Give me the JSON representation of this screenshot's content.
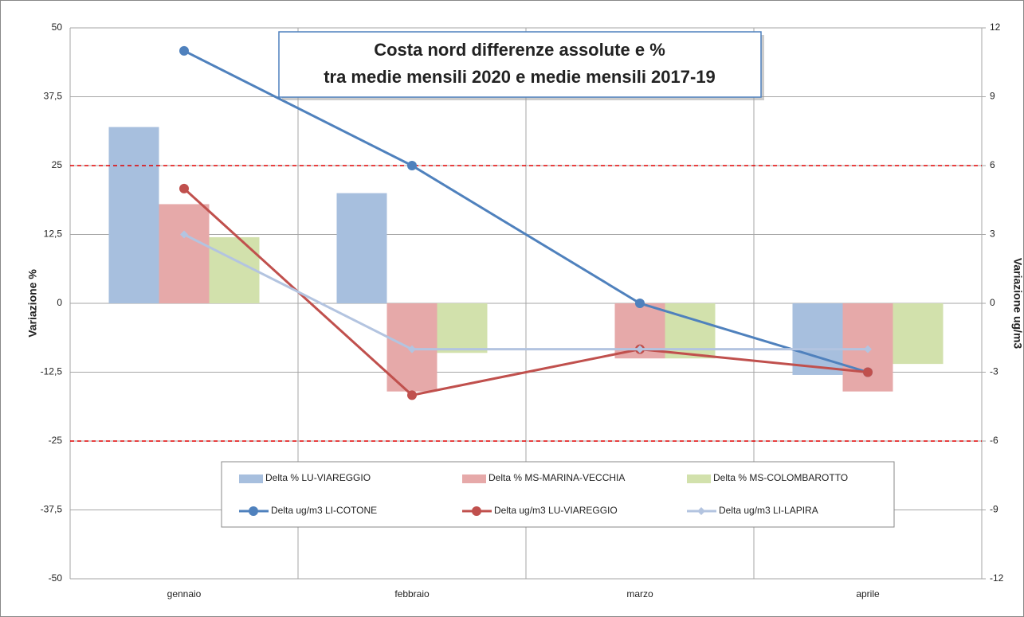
{
  "chart_data": {
    "type": "combo",
    "title": [
      "Costa nord differenze assolute e %",
      "tra medie mensili 2020 e medie mensili 2017-19"
    ],
    "y_label": "Variazione %",
    "y2_label": "Variazione ug/m3",
    "categories": [
      "gennaio",
      "febbraio",
      "marzo",
      "aprile"
    ],
    "series": [
      {
        "name": "Delta % LU-VIAREGGIO",
        "kind": "bar",
        "color": "#a7bfde",
        "values": [
          32,
          20,
          null,
          -13
        ]
      },
      {
        "name": "Delta % MS-MARINA-VECCHIA",
        "kind": "bar",
        "color": "#e6a9a9",
        "values": [
          18,
          -16,
          -10,
          -16
        ]
      },
      {
        "name": "Delta % MS-COLOMBAROTTO",
        "kind": "bar",
        "color": "#d2e1ac",
        "values": [
          12,
          -9,
          -10,
          -11
        ]
      },
      {
        "name": "Delta ug/m3 LI-COTONE",
        "kind": "line",
        "axis": "y2",
        "marker": "circle",
        "color": "#4f81bd",
        "values": [
          11,
          6,
          0,
          -3
        ]
      },
      {
        "name": "Delta ug/m3 LU-VIAREGGIO",
        "kind": "line",
        "axis": "y2",
        "marker": "circle",
        "color": "#c0504d",
        "values": [
          5,
          -4,
          -2,
          -3
        ]
      },
      {
        "name": "Delta ug/m3 LI-LAPIRA",
        "kind": "line",
        "axis": "y2",
        "marker": "diamond",
        "color": "#b3c4e0",
        "values": [
          3,
          -2,
          -2,
          -2
        ]
      }
    ],
    "ylim": [
      -50,
      50
    ],
    "yticks": [
      {
        "value": -50,
        "label": "-50"
      },
      {
        "value": -37.5,
        "label": "-37,5"
      },
      -25,
      {
        "value": -12.5,
        "label": "-12,5"
      },
      0,
      {
        "value": 12.5,
        "label": "12,5"
      },
      25,
      {
        "value": 37.5,
        "label": "37,5"
      },
      50
    ],
    "y2lim": [
      -12,
      12
    ],
    "y2ticks": [
      -12,
      -9,
      -6,
      -3,
      0,
      3,
      6,
      9,
      12
    ],
    "reference_lines": [
      25,
      -25
    ],
    "reference_color": "#e00000",
    "grid": true
  }
}
